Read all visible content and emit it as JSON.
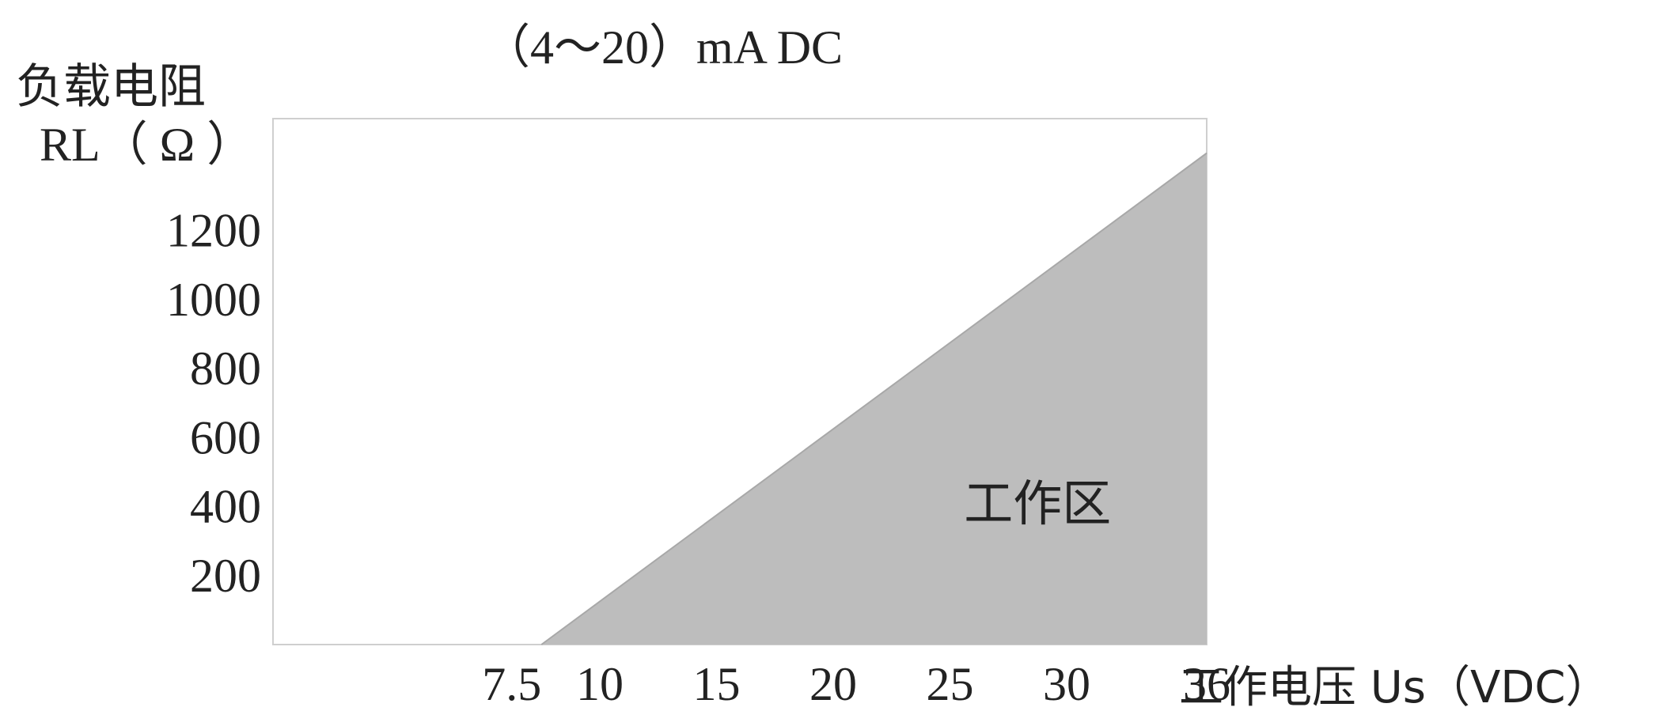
{
  "chart_data": {
    "type": "area",
    "title": "（4～20）mA DC",
    "ylabel": "负载电阻",
    "ylabel_unit": "RL（ Ω ）",
    "xlabel": "工作电压 Us（VDC）",
    "region_label": "工作区",
    "x_ticks": [
      "7.5",
      "10",
      "15",
      "20",
      "25",
      "30",
      "36"
    ],
    "x_tick_values": [
      7.5,
      10,
      15,
      20,
      25,
      30,
      36
    ],
    "y_ticks": [
      "200",
      "400",
      "600",
      "800",
      "1000",
      "1200"
    ],
    "y_tick_values": [
      200,
      400,
      600,
      800,
      1000,
      1200
    ],
    "x": [
      7.5,
      36
    ],
    "y": [
      0,
      1425
    ],
    "xlim": [
      -4,
      36
    ],
    "ylim": [
      0,
      1525
    ],
    "colors": {
      "fill": "#bdbdbd",
      "frame": "#cfcfcf",
      "text": "#222222"
    }
  }
}
